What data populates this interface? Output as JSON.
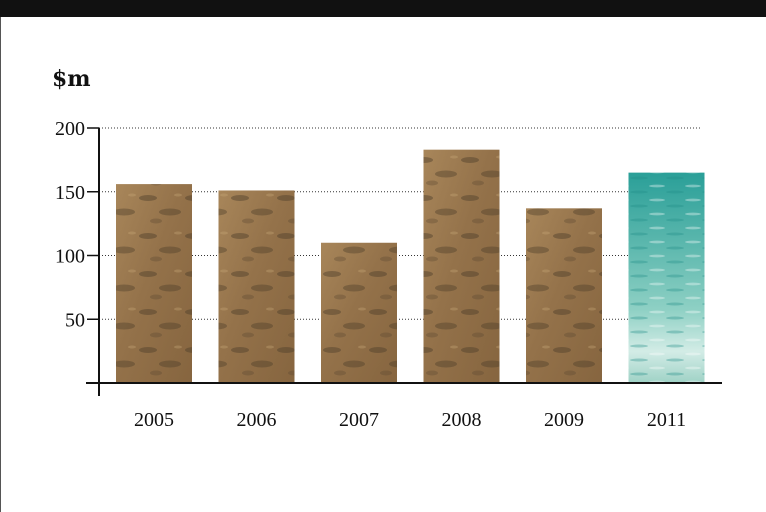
{
  "chart_data": {
    "type": "bar",
    "title": "",
    "ylabel": "$m",
    "xlabel": "",
    "categories": [
      "2005",
      "2006",
      "2007",
      "2008",
      "2009",
      "2011"
    ],
    "values": [
      156,
      151,
      110,
      183,
      137,
      165
    ],
    "ylim": [
      0,
      200
    ],
    "yticks": [
      50,
      100,
      150,
      200
    ],
    "grid": true,
    "bar_fills": [
      "sand",
      "sand",
      "sand",
      "sand",
      "sand",
      "water"
    ],
    "colors": {
      "sand": "#9b7a4e",
      "sand_dark": "#5c4a30",
      "water": "#2fa59b",
      "water_light": "#cfe9e3",
      "axis": "#111111",
      "grid": "#333333"
    }
  }
}
